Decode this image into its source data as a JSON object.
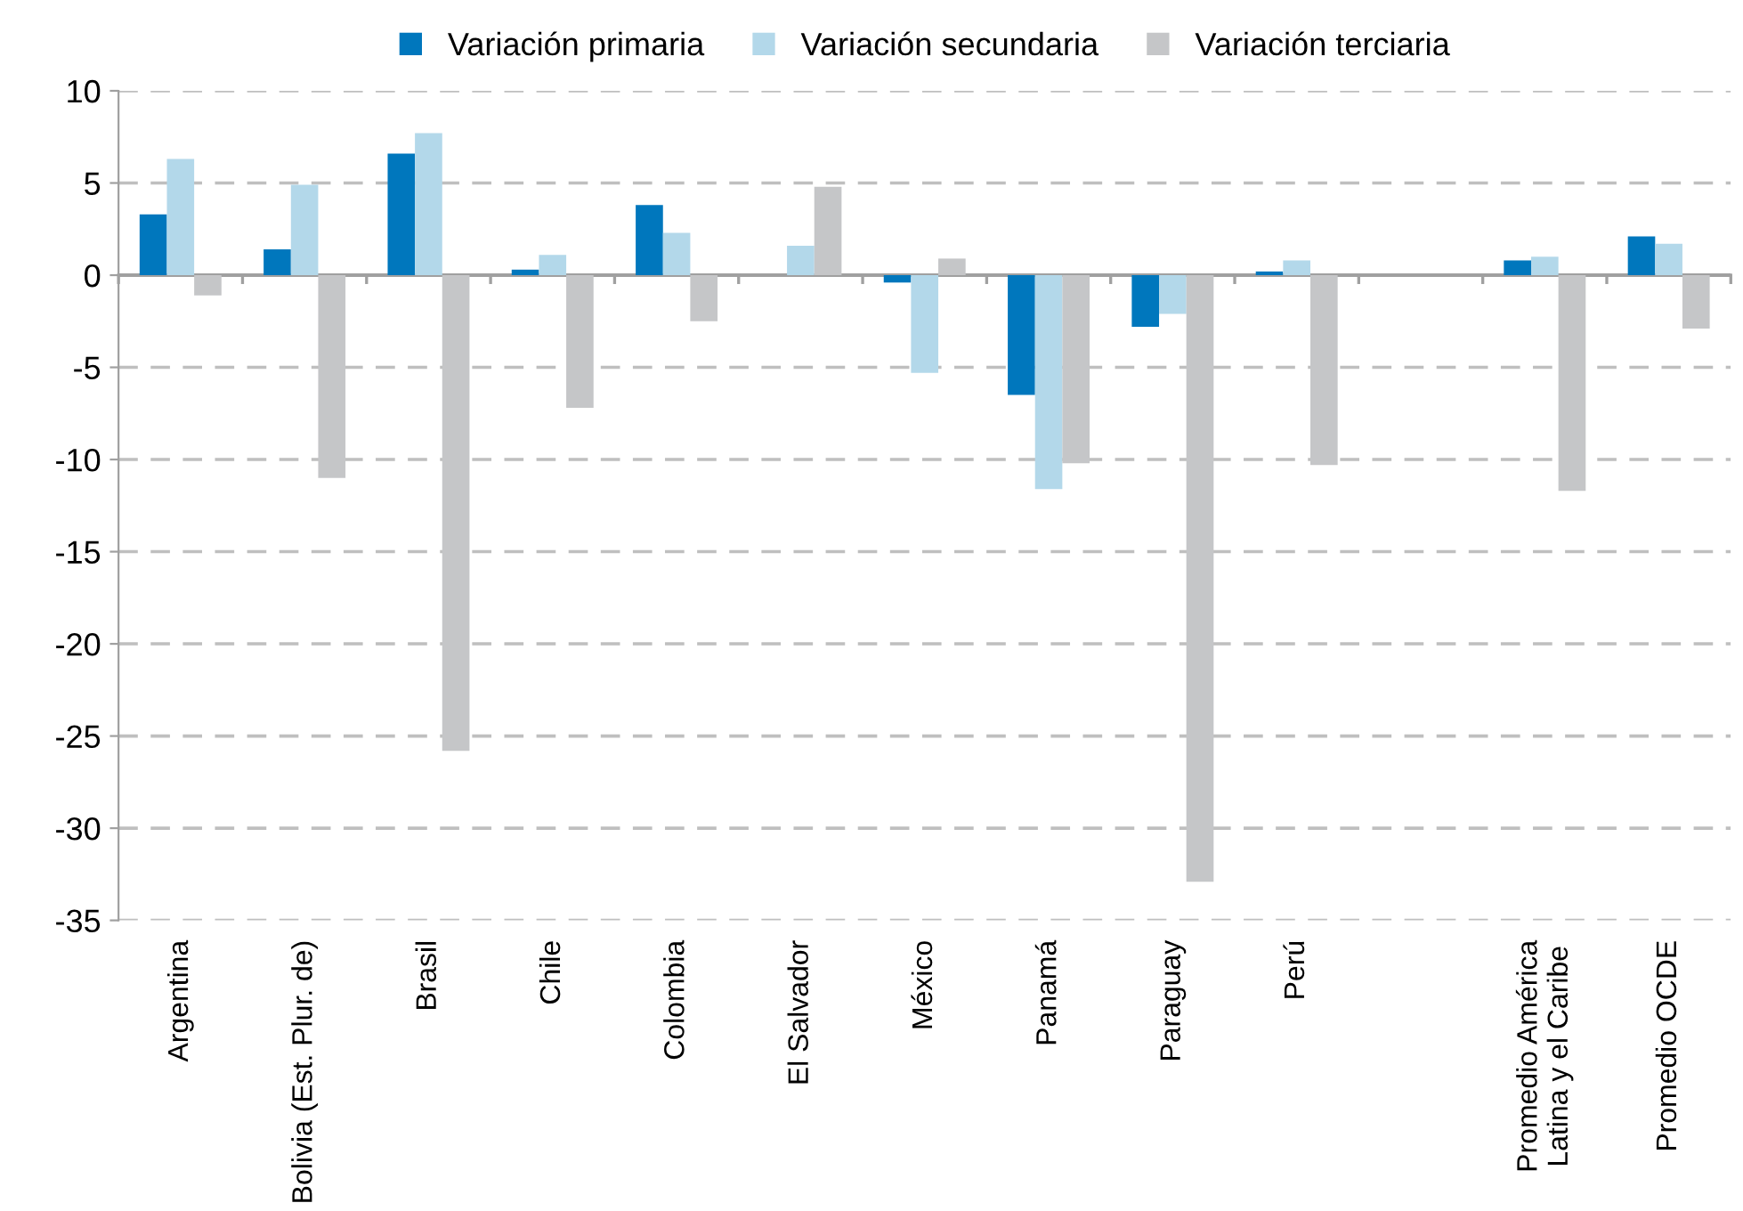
{
  "chart_data": {
    "type": "bar",
    "categories": [
      "Argentina",
      "Bolivia (Est. Plur. de)",
      "Brasil",
      "Chile",
      "Colombia",
      "El Salvador",
      "México",
      "Panamá",
      "Paraguay",
      "Perú",
      null,
      "Promedio América\nLatina y el Caribe",
      "Promedio OCDE"
    ],
    "series": [
      {
        "name": "Variación primaria",
        "color": "#0077bd",
        "values": [
          3.3,
          1.4,
          6.6,
          0.3,
          3.8,
          null,
          -0.4,
          -6.5,
          -2.8,
          0.2,
          null,
          0.8,
          2.1
        ]
      },
      {
        "name": "Variación secundaria",
        "color": "#b3d8ea",
        "values": [
          6.3,
          4.9,
          7.7,
          1.1,
          2.3,
          1.6,
          -5.3,
          -11.6,
          -2.1,
          0.8,
          null,
          1.0,
          1.7
        ]
      },
      {
        "name": "Variación terciaria",
        "color": "#c5c6c8",
        "values": [
          -1.1,
          -11.0,
          -25.8,
          -7.2,
          -2.5,
          4.8,
          0.9,
          -10.2,
          -32.9,
          -10.3,
          null,
          -11.7,
          -2.9
        ]
      }
    ],
    "ylim": [
      -35,
      10
    ],
    "yticks": [
      -35,
      -30,
      -25,
      -20,
      -15,
      -10,
      -5,
      0,
      5,
      10
    ],
    "grid": "y",
    "legend": "top"
  }
}
